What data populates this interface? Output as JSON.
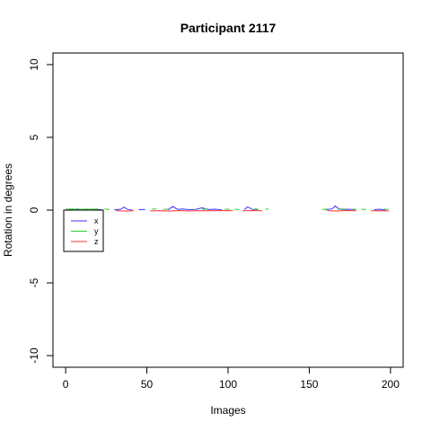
{
  "chart_data": {
    "type": "line",
    "title": "Participant 2117",
    "xlabel": "Images",
    "ylabel": "Rotation in degrees",
    "xlim": [
      -7.8,
      207.8
    ],
    "ylim": [
      -10.8,
      10.8
    ],
    "x_ticks": [
      0,
      50,
      100,
      150,
      200
    ],
    "y_ticks": [
      -10,
      -5,
      0,
      5,
      10
    ],
    "legend_position": "left",
    "colors": {
      "x": "#3333ff",
      "y": "#33cc33",
      "z": "#ff3333"
    },
    "series": [
      {
        "name": "x",
        "segments": [
          [
            [
              0,
              0.0
            ],
            [
              4,
              0.05
            ],
            [
              7,
              0.08
            ],
            [
              10,
              0.03
            ],
            [
              14,
              0.06
            ],
            [
              18,
              0.02
            ],
            [
              22,
              0.04
            ]
          ],
          [
            [
              30,
              0.02
            ],
            [
              34,
              0.06
            ],
            [
              36,
              0.2
            ],
            [
              38,
              0.05
            ],
            [
              41,
              0.0
            ]
          ],
          [
            [
              45,
              0.03
            ],
            [
              49,
              0.05
            ]
          ],
          [
            [
              63,
              0.02
            ],
            [
              66,
              0.25
            ],
            [
              69,
              0.05
            ],
            [
              72,
              0.08
            ],
            [
              76,
              0.03
            ],
            [
              80,
              0.05
            ],
            [
              84,
              0.15
            ],
            [
              88,
              0.04
            ],
            [
              92,
              0.06
            ],
            [
              96,
              0.02
            ]
          ],
          [
            [
              110,
              0.04
            ],
            [
              112,
              0.22
            ],
            [
              115,
              0.05
            ],
            [
              118,
              0.03
            ]
          ],
          [
            [
              160,
              0.03
            ],
            [
              164,
              0.08
            ],
            [
              166,
              0.28
            ],
            [
              168,
              0.1
            ],
            [
              170,
              0.04
            ],
            [
              174,
              0.06
            ],
            [
              178,
              0.02
            ]
          ],
          [
            [
              190,
              0.02
            ],
            [
              193,
              0.06
            ],
            [
              197,
              0.01
            ]
          ]
        ]
      },
      {
        "name": "y",
        "segments": [
          [
            [
              0,
              0.06
            ],
            [
              4,
              0.08
            ],
            [
              8,
              0.05
            ],
            [
              12,
              0.07
            ],
            [
              16,
              0.06
            ],
            [
              20,
              0.08
            ]
          ],
          [
            [
              24,
              0.07
            ],
            [
              27,
              0.05
            ]
          ],
          [
            [
              53,
              0.06
            ],
            [
              56,
              0.08
            ]
          ],
          [
            [
              60,
              0.05
            ],
            [
              63,
              0.07
            ]
          ],
          [
            [
              84,
              0.06
            ],
            [
              87,
              0.08
            ]
          ],
          [
            [
              98,
              0.07
            ],
            [
              101,
              0.05
            ]
          ],
          [
            [
              104,
              0.06
            ],
            [
              107,
              0.04
            ]
          ],
          [
            [
              116,
              0.08
            ],
            [
              119,
              0.06
            ]
          ],
          [
            [
              123,
              0.06
            ],
            [
              125,
              0.08
            ]
          ],
          [
            [
              158,
              0.05
            ],
            [
              161,
              0.07
            ]
          ],
          [
            [
              168,
              0.06
            ],
            [
              172,
              0.08
            ]
          ],
          [
            [
              176,
              0.05
            ],
            [
              179,
              0.07
            ]
          ],
          [
            [
              182,
              0.06
            ],
            [
              185,
              0.04
            ]
          ],
          [
            [
              196,
              0.07
            ],
            [
              199,
              0.05
            ]
          ]
        ]
      },
      {
        "name": "z",
        "segments": [
          [
            [
              0,
              -0.05
            ],
            [
              6,
              -0.04
            ],
            [
              12,
              -0.07
            ],
            [
              18,
              -0.05
            ],
            [
              23,
              -0.06
            ]
          ],
          [
            [
              31,
              -0.04
            ],
            [
              37,
              -0.07
            ],
            [
              42,
              -0.05
            ]
          ],
          [
            [
              52,
              -0.06
            ],
            [
              58,
              -0.04
            ],
            [
              64,
              -0.06
            ],
            [
              70,
              -0.03
            ],
            [
              76,
              -0.06
            ],
            [
              82,
              -0.04
            ],
            [
              90,
              -0.05
            ],
            [
              96,
              -0.03
            ],
            [
              103,
              -0.04
            ]
          ],
          [
            [
              109,
              -0.05
            ],
            [
              115,
              -0.03
            ],
            [
              121,
              -0.05
            ]
          ],
          [
            [
              161,
              -0.04
            ],
            [
              167,
              -0.06
            ],
            [
              173,
              -0.03
            ],
            [
              179,
              -0.05
            ]
          ],
          [
            [
              188,
              -0.05
            ],
            [
              194,
              -0.04
            ],
            [
              199,
              -0.06
            ]
          ]
        ]
      }
    ]
  }
}
